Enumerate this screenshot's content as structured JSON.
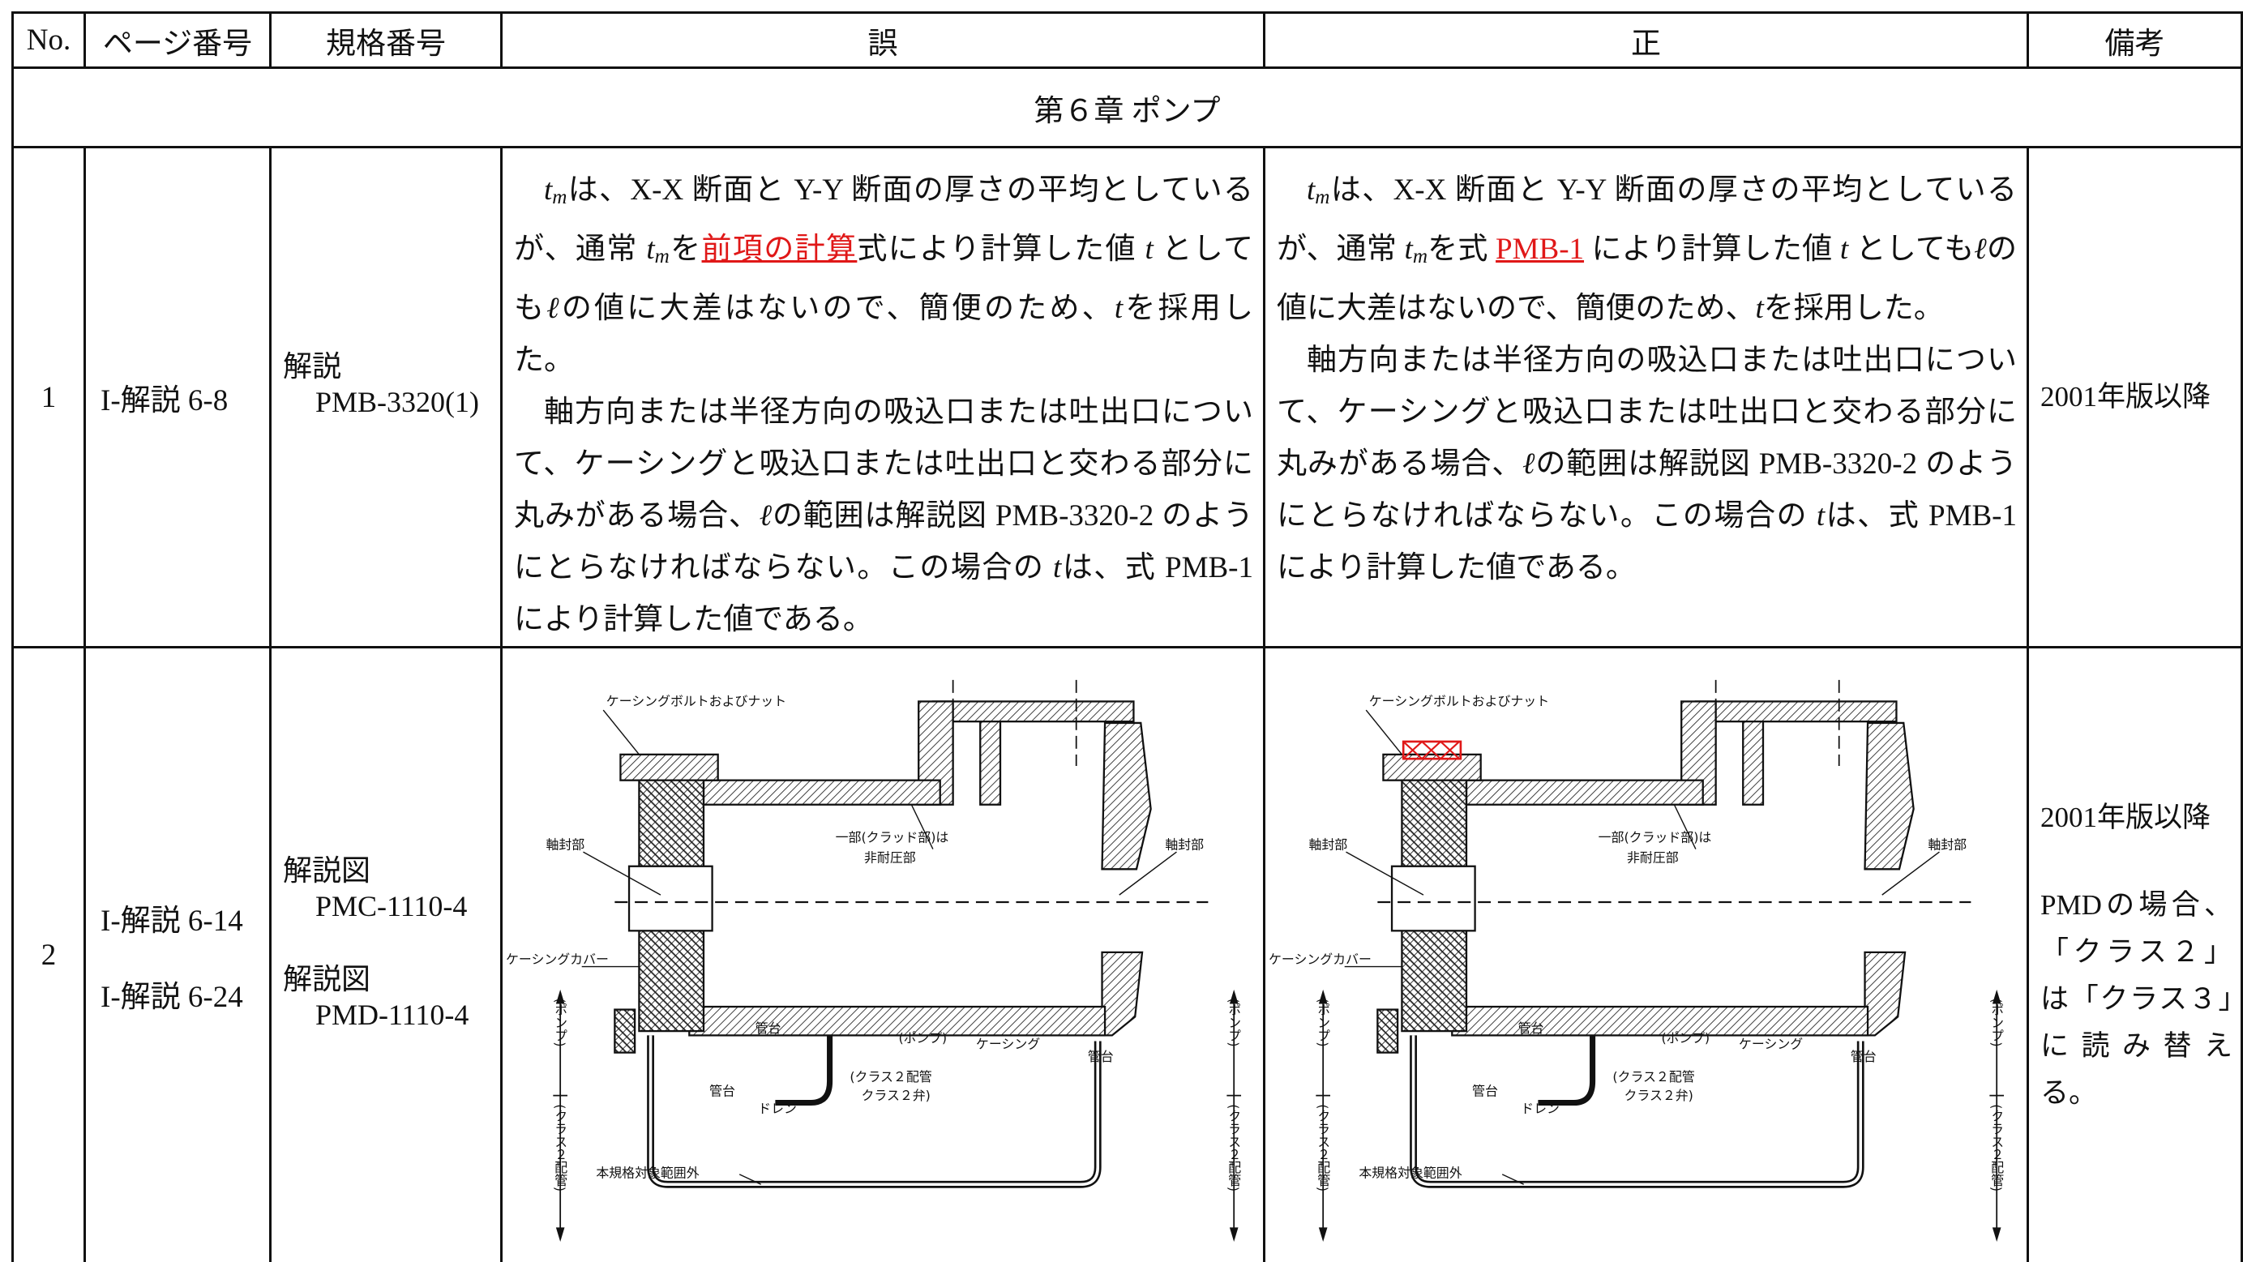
{
  "table": {
    "header": [
      "No.",
      "ページ番号",
      "規格番号",
      "誤",
      "正",
      "備考"
    ],
    "chapter": "第６章 ポンプ",
    "rows": [
      {
        "no": "1",
        "pages": [
          "I-解説 6-8"
        ],
        "specs": [
          {
            "label": "解説",
            "number": "PMB-3320(1)"
          }
        ],
        "wrong": {
          "paragraphs": [
            [
              {
                "text": "t",
                "style": "italic"
              },
              {
                "text": "m",
                "style": "sub"
              },
              {
                "text": "は、X-X 断面と Y-Y 断面の厚さの平均としているが、通常 "
              },
              {
                "text": "t",
                "style": "italic"
              },
              {
                "text": "m",
                "style": "sub"
              },
              {
                "text": "を"
              },
              {
                "text": "前項の計算",
                "style": "red"
              },
              {
                "text": "式により計算した値 "
              },
              {
                "text": "t",
                "style": "italic"
              },
              {
                "text": " としても"
              },
              {
                "text": "ℓ",
                "style": "italic"
              },
              {
                "text": "の値に大差はないので、簡便のため、"
              },
              {
                "text": "t",
                "style": "italic"
              },
              {
                "text": "を採用した。"
              }
            ],
            [
              {
                "text": "軸方向または半径方向の吸込口または吐出口について、ケーシングと吸込口または吐出口と交わる部分に丸みがある場合、"
              },
              {
                "text": "ℓ",
                "style": "italic"
              },
              {
                "text": "の範囲は解説図 PMB-3320-2 のようにとらなければならない。この場合の "
              },
              {
                "text": "t",
                "style": "italic"
              },
              {
                "text": "は、式 PMB-1 により計算した値である。"
              }
            ]
          ]
        },
        "correct": {
          "paragraphs": [
            [
              {
                "text": "t",
                "style": "italic"
              },
              {
                "text": "m",
                "style": "sub"
              },
              {
                "text": "は、X-X 断面と Y-Y 断面の厚さの平均としているが、通常 "
              },
              {
                "text": "t",
                "style": "italic"
              },
              {
                "text": "m",
                "style": "sub"
              },
              {
                "text": "を式 "
              },
              {
                "text": "PMB-1",
                "style": "red"
              },
              {
                "text": " により計算した値 "
              },
              {
                "text": "t",
                "style": "italic"
              },
              {
                "text": " としても"
              },
              {
                "text": "ℓ",
                "style": "italic"
              },
              {
                "text": "の値に大差はないので、簡便のため、"
              },
              {
                "text": "t",
                "style": "italic"
              },
              {
                "text": "を採用した。"
              }
            ],
            [
              {
                "text": "軸方向または半径方向の吸込口または吐出口について、ケーシングと吸込口または吐出口と交わる部分に丸みがある場合、"
              },
              {
                "text": "ℓ",
                "style": "italic"
              },
              {
                "text": "の範囲は解説図 PMB-3320-2 のようにとらなければならない。この場合の "
              },
              {
                "text": "t",
                "style": "italic"
              },
              {
                "text": "は、式 PMB-1 により計算した値である。"
              }
            ]
          ]
        },
        "notes": [
          "2001年版以降"
        ]
      },
      {
        "no": "2",
        "pages": [
          "I-解説 6-14",
          "I-解説 6-24"
        ],
        "specs": [
          {
            "label": "解説図",
            "number": "PMC-1110-4"
          },
          {
            "label": "解説図",
            "number": "PMD-1110-4"
          }
        ],
        "wrong": {
          "figure": {
            "labels": [
              "ケーシングボルトおよびナット",
              "一部(クラッド部)は",
              "非耐圧部",
              "軸封部",
              "軸封部",
              "ケーシングカバー",
              "(ポンプ)",
              "(クラス２配管)",
              "(ポンプ)",
              "(クラス２配管)",
              "管台",
              "管台",
              "管台",
              "ドレン",
              "(ポンプ)",
              "ケーシング",
              "(クラス２配管",
              "クラス２弁)",
              "本規格対象範囲外"
            ]
          }
        },
        "correct": {
          "figure": {
            "labels": [
              "ケーシングボルトおよびナット",
              "一部(クラッド部)は",
              "非耐圧部",
              "軸封部",
              "軸封部",
              "ケーシングカバー",
              "(ポンプ)",
              "(クラス２配管)",
              "(ポンプ)",
              "(クラス２配管)",
              "管台",
              "管台",
              "管台",
              "ドレン",
              "(ポンプ)",
              "ケーシング",
              "(クラス２配管",
              "クラス２弁)",
              "本規格対象範囲外"
            ]
          }
        },
        "notes": [
          "2001年版以降",
          "PMDの場合、「クラス２」は「クラス３」に読み替える。"
        ]
      }
    ]
  }
}
